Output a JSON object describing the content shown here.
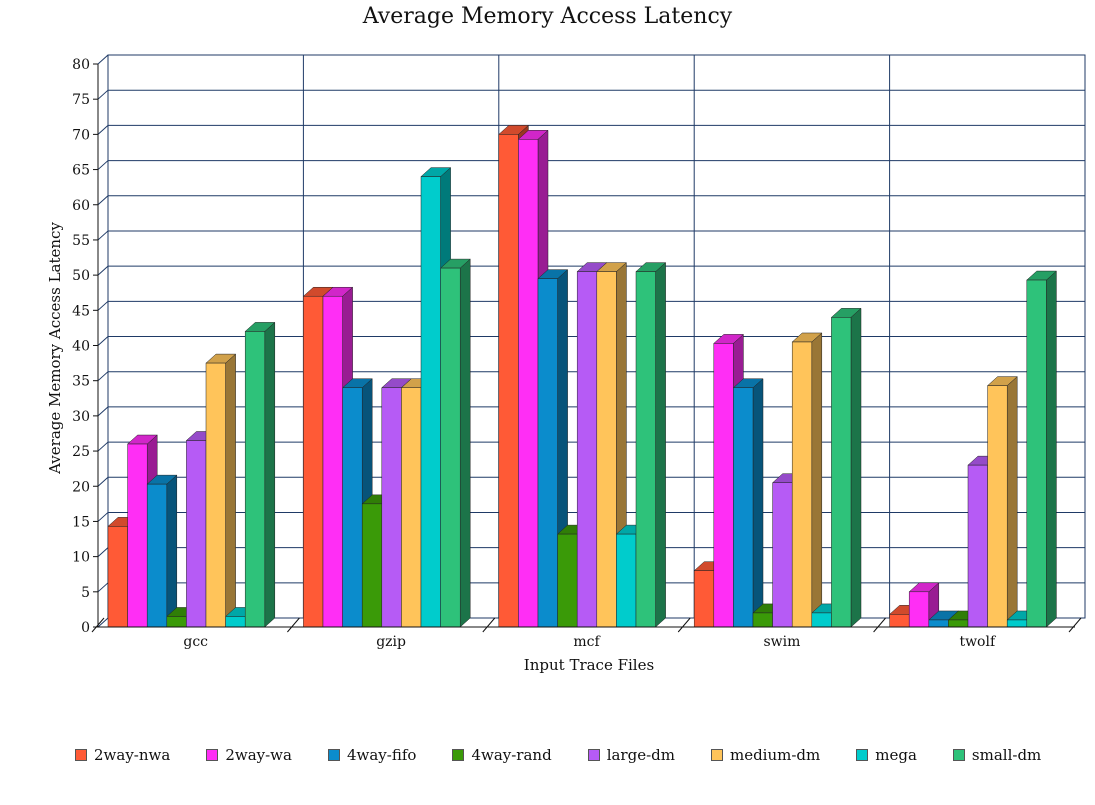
{
  "chart_data": {
    "type": "bar",
    "title": "Average Memory Access Latency",
    "xlabel": "Input Trace Files",
    "ylabel": "Average Memory Access Latency",
    "ylim": [
      0,
      80
    ],
    "yticks": [
      "0",
      "5",
      "10",
      "15",
      "20",
      "25",
      "30",
      "35",
      "40",
      "45",
      "50",
      "55",
      "60",
      "65",
      "70",
      "75",
      "80"
    ],
    "categories": [
      "gcc",
      "gzip",
      "mcf",
      "swim",
      "twolf"
    ],
    "grid": true,
    "legend_position": "bottom",
    "series": [
      {
        "name": "2way-nwa",
        "color": "#ff5a36",
        "values": [
          14.3,
          47.0,
          70.0,
          8.0,
          1.8
        ]
      },
      {
        "name": "2way-wa",
        "color": "#ff2ef5",
        "values": [
          26.0,
          47.0,
          69.3,
          40.3,
          5.0
        ]
      },
      {
        "name": "4way-fifo",
        "color": "#0b8ccc",
        "values": [
          20.3,
          34.0,
          49.5,
          34.0,
          1.0
        ]
      },
      {
        "name": "4way-rand",
        "color": "#3a9a08",
        "values": [
          1.5,
          17.5,
          13.2,
          2.0,
          1.0
        ]
      },
      {
        "name": "large-dm",
        "color": "#b65bf5",
        "values": [
          26.5,
          34.0,
          50.5,
          20.5,
          23.0
        ]
      },
      {
        "name": "medium-dm",
        "color": "#ffc45a",
        "values": [
          37.5,
          34.0,
          50.5,
          40.5,
          34.3
        ]
      },
      {
        "name": "mega",
        "color": "#00cccc",
        "values": [
          1.5,
          64.0,
          13.2,
          2.0,
          1.0
        ]
      },
      {
        "name": "small-dm",
        "color": "#2ec27a",
        "values": [
          42.0,
          51.0,
          50.5,
          44.0,
          49.3
        ]
      }
    ]
  }
}
